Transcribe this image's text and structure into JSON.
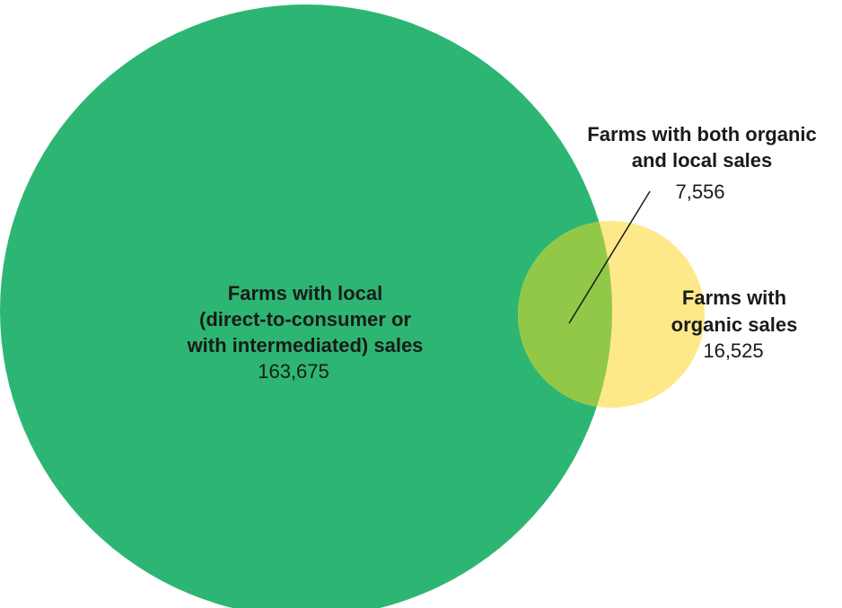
{
  "colors": {
    "local": "#2db673",
    "organic": "#fde98a",
    "overlap": "#92c848",
    "text": "#1a1a1a",
    "leader": "#1a1a1a"
  },
  "sets": {
    "local": {
      "label_lines": [
        "Farms with local",
        "(direct-to-consumer or",
        "with intermediated) sales"
      ],
      "value": "163,675"
    },
    "organic": {
      "label_lines": [
        "Farms with",
        "organic sales"
      ],
      "value": "16,525"
    },
    "both": {
      "label_lines": [
        "Farms with both organic",
        "and local sales"
      ],
      "value": "7,556"
    }
  }
}
